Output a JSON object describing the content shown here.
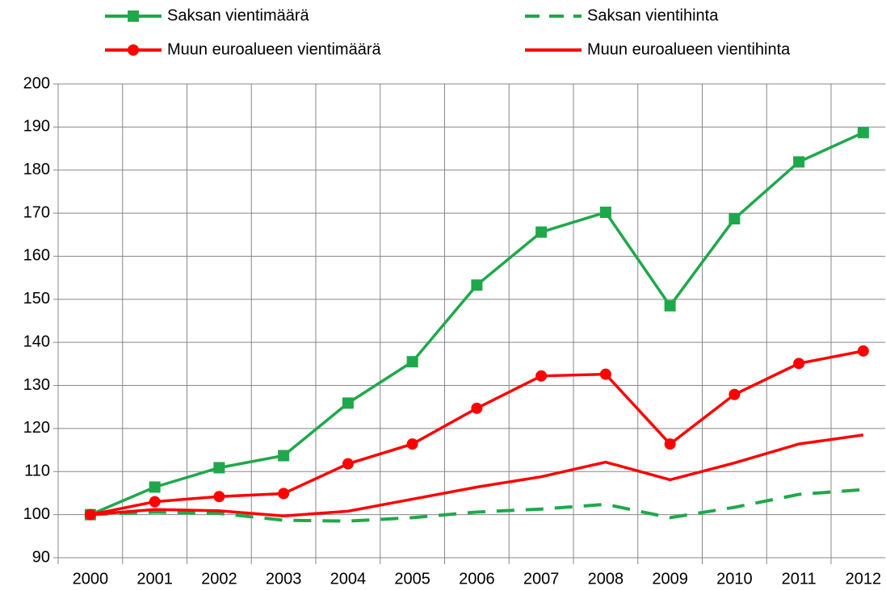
{
  "chart_data": {
    "type": "line",
    "categories": [
      "2000",
      "2001",
      "2002",
      "2003",
      "2004",
      "2005",
      "2006",
      "2007",
      "2008",
      "2009",
      "2010",
      "2011",
      "2012"
    ],
    "series": [
      {
        "name": "Saksan vientimäärä",
        "color": "#1fa84b",
        "marker": "square",
        "dash": false,
        "values": [
          100,
          106.4,
          110.9,
          113.7,
          125.9,
          135.5,
          153.3,
          165.6,
          170.2,
          148.5,
          168.7,
          181.9,
          188.7
        ]
      },
      {
        "name": "Saksan vientihinta",
        "color": "#1fa84b",
        "dash": true,
        "values": [
          100,
          100.6,
          100.3,
          98.7,
          98.5,
          99.3,
          100.6,
          101.3,
          102.4,
          99.3,
          101.7,
          104.7,
          105.8
        ]
      },
      {
        "name": "Muun euroalueen vientimäärä",
        "color": "#ff0000",
        "marker": "circle",
        "dash": false,
        "values": [
          100,
          103.0,
          104.2,
          104.9,
          111.8,
          116.4,
          124.7,
          132.2,
          132.6,
          116.4,
          127.9,
          135.1,
          138.0
        ]
      },
      {
        "name": "Muun euroalueen vientihinta",
        "color": "#ff0000",
        "dash": false,
        "values": [
          100,
          101.2,
          100.9,
          99.7,
          100.8,
          103.6,
          106.4,
          108.8,
          112.2,
          108.1,
          112.0,
          116.4,
          118.5
        ]
      }
    ],
    "ylim": [
      90,
      200
    ],
    "yticks": [
      90,
      100,
      110,
      120,
      130,
      140,
      150,
      160,
      170,
      180,
      190,
      200
    ],
    "grid": true,
    "legend": "top"
  }
}
